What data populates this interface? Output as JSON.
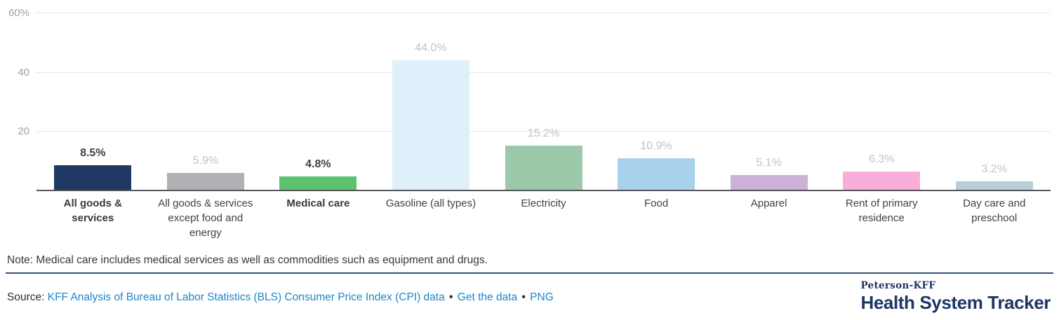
{
  "chart_data": {
    "type": "bar",
    "title": "",
    "xlabel": "",
    "ylabel": "",
    "categories": [
      "All goods & services",
      "All goods & services except food and energy",
      "Medical care",
      "Gasoline (all types)",
      "Electricity",
      "Food",
      "Apparel",
      "Rent of primary residence",
      "Day care and preschool"
    ],
    "values": [
      8.5,
      5.9,
      4.8,
      44.0,
      15.2,
      10.9,
      5.1,
      6.3,
      3.2
    ],
    "value_labels": [
      "8.5%",
      "5.9%",
      "4.8%",
      "44.0%",
      "15.2%",
      "10.9%",
      "5.1%",
      "6.3%",
      "3.2%"
    ],
    "bar_colors": [
      "#1f3864",
      "#b1b1b4",
      "#5bc16d",
      "#e0f0fb",
      "#9cc9a9",
      "#a7d1ec",
      "#ccb2d6",
      "#f8aed8",
      "#b8cfd9"
    ],
    "emphasized": [
      true,
      false,
      true,
      false,
      false,
      false,
      false,
      false,
      false
    ],
    "ylim": [
      0,
      60
    ],
    "yticks": [
      {
        "value": 60,
        "label": "60%"
      },
      {
        "value": 40,
        "label": "40"
      },
      {
        "value": 20,
        "label": "20"
      }
    ],
    "grid": true,
    "legend": false
  },
  "note": {
    "text": "Note: Medical care includes medical services as well as commodities such as equipment and drugs."
  },
  "source": {
    "label": "Source:",
    "separator": "•",
    "links": [
      "KFF Analysis of Bureau of Labor Statistics (BLS) Consumer Price Index (CPI) data",
      "Get the data",
      "PNG"
    ]
  },
  "logo": {
    "brand": "Peterson-KFF",
    "title": "Health System Tracker"
  },
  "colors": {
    "link": "#1b87c9",
    "navy": "#1c3666",
    "axis_line": "#57575b",
    "gridline": "#e7e7e7",
    "tick_label": "#a2a2a6",
    "value_muted": "#c2c2c6",
    "value_emphasis": "#3f3f3f"
  }
}
